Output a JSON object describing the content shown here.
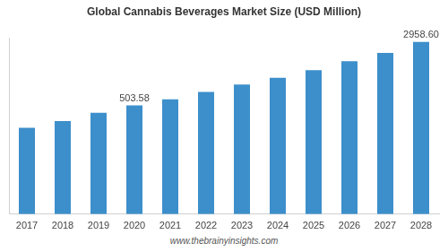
{
  "chart_data": {
    "type": "bar",
    "title": "Global Cannabis Beverages Market Size (USD Million)",
    "source": "www.thebrainyinsights.com",
    "categories": [
      "2017",
      "2018",
      "2019",
      "2020",
      "2021",
      "2022",
      "2023",
      "2024",
      "2025",
      "2026",
      "2027",
      "2028"
    ],
    "values": [
      268,
      323,
      408,
      503.58,
      593,
      731,
      902,
      1087,
      1340,
      1730,
      2183,
      2958.6
    ],
    "value_labels": [
      null,
      null,
      null,
      "503.58",
      null,
      null,
      null,
      null,
      null,
      null,
      null,
      "2958.60"
    ],
    "color": "#3d8fcb",
    "log": "y",
    "ylim": [
      24,
      3300
    ],
    "grid": false,
    "tick_labels": "x"
  }
}
